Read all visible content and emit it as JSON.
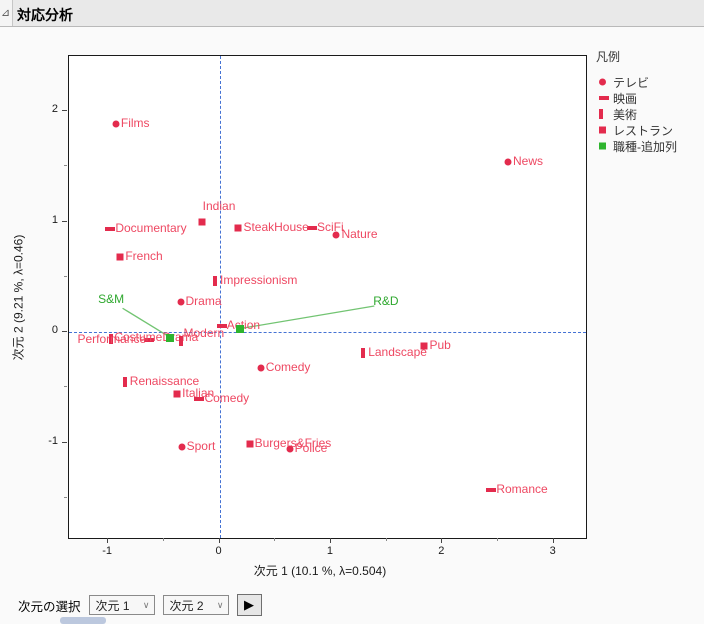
{
  "header": {
    "title": "対応分析",
    "disclosure_glyph": "⊿"
  },
  "legend": {
    "title": "凡例",
    "items": [
      {
        "label": "テレビ",
        "marker": "circle",
        "color": "#e32b4d"
      },
      {
        "label": "映画",
        "marker": "hbar",
        "color": "#e32b4d"
      },
      {
        "label": "美術",
        "marker": "vbar",
        "color": "#e32b4d"
      },
      {
        "label": "レストラン",
        "marker": "square",
        "color": "#e32b4d"
      },
      {
        "label": "職種-追加列",
        "marker": "gsquare",
        "color": "#2eb42e"
      }
    ]
  },
  "controls": {
    "label": "次元の選択",
    "dim1_value": "次元 1",
    "dim2_value": "次元 2",
    "chevron_glyph": "∨",
    "apply_glyph": "▶"
  },
  "colors": {
    "marker_red": "#e32b4d",
    "label_red": "#ee4862",
    "marker_green": "#2eb42e",
    "label_green": "#2fa82f",
    "leader_green": "#72c472",
    "ref_blue": "#4472d4"
  },
  "chart_data": {
    "type": "scatter",
    "xlabel": "次元 1  (10.1 %, λ=0.504)",
    "ylabel": "次元 2  (9.21 %, λ=0.46)",
    "xlim": [
      -1.36,
      3.3
    ],
    "ylim": [
      -1.87,
      2.5
    ],
    "x_ticks_major": [
      -1,
      0,
      1,
      2,
      3
    ],
    "x_ticks_minor": [
      -0.5,
      0.5,
      1.5,
      2.5
    ],
    "y_ticks_major": [
      2,
      1,
      0,
      -1
    ],
    "y_ticks_minor": [
      1.5,
      0.5,
      -0.5,
      -1.5
    ],
    "reference_lines": {
      "x": 0,
      "y": 0
    },
    "legend_position": "right",
    "grid": false,
    "series": [
      {
        "name": "テレビ",
        "marker": "circle",
        "points": [
          {
            "label": "Films",
            "x": -0.93,
            "y": 1.88
          },
          {
            "label": "News",
            "x": 2.59,
            "y": 1.54
          },
          {
            "label": "Nature",
            "x": 1.05,
            "y": 0.88
          },
          {
            "label": "Drama",
            "x": -0.35,
            "y": 0.27
          },
          {
            "label": "Comedy",
            "x": 0.37,
            "y": -0.33
          },
          {
            "label": "Sport",
            "x": -0.34,
            "y": -1.04
          },
          {
            "label": "Police",
            "x": 0.63,
            "y": -1.06
          }
        ]
      },
      {
        "name": "映画",
        "marker": "hbar",
        "points": [
          {
            "label": "Documentary",
            "x": -0.98,
            "y": 0.93
          },
          {
            "label": "SciFi",
            "x": 0.83,
            "y": 0.94
          },
          {
            "label": "Action",
            "x": 0.02,
            "y": 0.05
          },
          {
            "label": "CostumeDrama",
            "x": -0.63,
            "y": -0.07,
            "label_dx": -35,
            "label_dy": -2
          },
          {
            "label": "Comedy",
            "x": -0.18,
            "y": -0.61
          },
          {
            "label": "Romance",
            "x": 2.44,
            "y": -1.43
          }
        ]
      },
      {
        "name": "美術",
        "marker": "vbar",
        "points": [
          {
            "label": "Impressionism",
            "x": -0.04,
            "y": 0.46
          },
          {
            "label": "Performance",
            "x": -0.97,
            "y": -0.06,
            "label_dx": -34,
            "label_dy": 1
          },
          {
            "label": "Modern",
            "x": -0.35,
            "y": -0.08,
            "label_dx": 3,
            "label_dy": -7
          },
          {
            "label": "Landscape",
            "x": 1.29,
            "y": -0.19
          },
          {
            "label": "Renaissance",
            "x": -0.85,
            "y": -0.45
          }
        ]
      },
      {
        "name": "レストラン",
        "marker": "square",
        "points": [
          {
            "label": "Indian",
            "x": -0.16,
            "y": 1.0,
            "label_dx": 1,
            "label_dy": -15
          },
          {
            "label": "SteakHouse",
            "x": 0.17,
            "y": 0.94
          },
          {
            "label": "French",
            "x": -0.89,
            "y": 0.68
          },
          {
            "label": "Italian",
            "x": -0.38,
            "y": -0.56
          },
          {
            "label": "Pub",
            "x": 1.84,
            "y": -0.13
          },
          {
            "label": "Burgers&Fries",
            "x": 0.27,
            "y": -1.01
          }
        ]
      },
      {
        "name": "職種-追加列",
        "marker": "gsquare",
        "points": [
          {
            "label": "S&M",
            "x": -0.44,
            "y": -0.05,
            "label_pos": {
              "x": -1.09,
              "y": 0.29
            },
            "leader_to": {
              "x": -0.87,
              "y": 0.215
            }
          },
          {
            "label": "R&D",
            "x": 0.18,
            "y": 0.03,
            "label_pos": {
              "x": 1.38,
              "y": 0.27
            },
            "leader_to": {
              "x": 1.39,
              "y": 0.235
            }
          }
        ]
      }
    ]
  }
}
